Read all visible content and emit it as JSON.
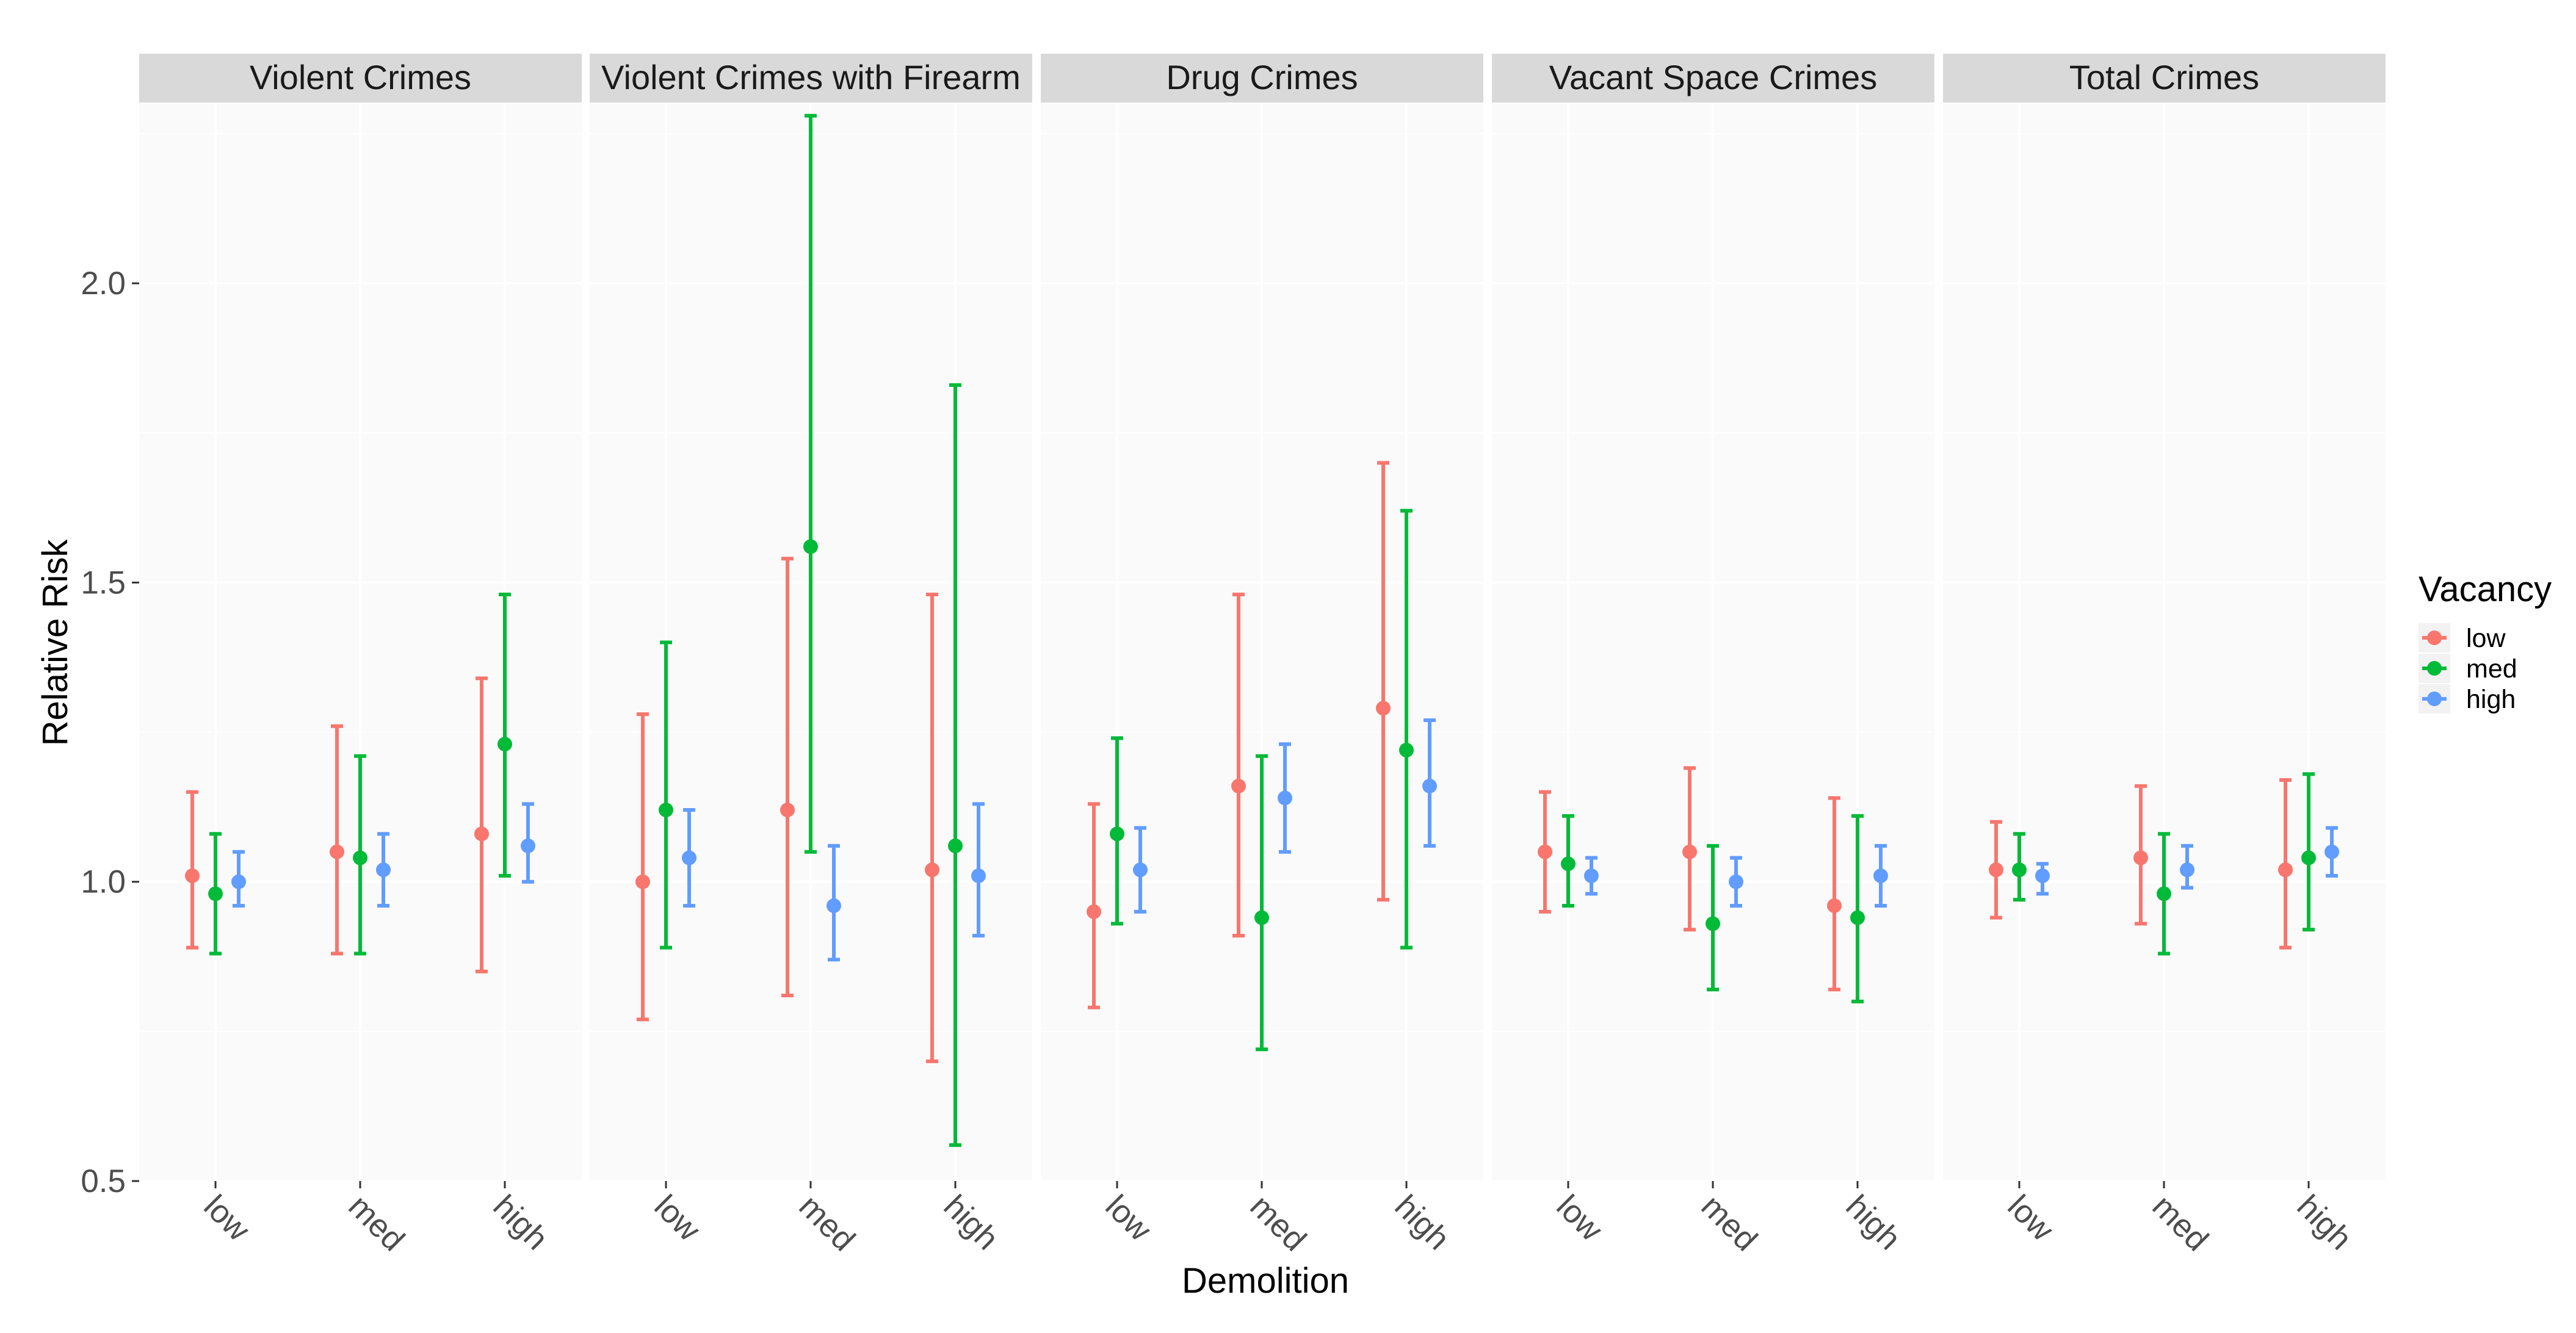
{
  "chart_data": {
    "type": "errorbar",
    "xlabel": "Demolition",
    "ylabel": "Relative Risk",
    "ylim": [
      0.5,
      2.3
    ],
    "yticks": [
      0.5,
      1.0,
      1.5,
      2.0
    ],
    "ytick_labels": [
      "0.5",
      "1.0",
      "1.5",
      "2.0"
    ],
    "categories": [
      "low",
      "med",
      "high"
    ],
    "legend": {
      "title": "Vacancy",
      "placement": "right",
      "entries": [
        {
          "name": "low",
          "color": "#F8766D"
        },
        {
          "name": "med",
          "color": "#00BA38"
        },
        {
          "name": "high",
          "color": "#619CFF"
        }
      ]
    },
    "colors": {
      "panel_bg": "#FAFAFA",
      "strip_bg": "#D9D9D9",
      "grid": "#FFFFFF"
    },
    "panels": [
      {
        "title": "Violent Crimes",
        "data": [
          [
            {
              "est": 1.01,
              "lo": 0.89,
              "hi": 1.15
            },
            {
              "est": 0.98,
              "lo": 0.88,
              "hi": 1.08
            },
            {
              "est": 1.0,
              "lo": 0.96,
              "hi": 1.05
            }
          ],
          [
            {
              "est": 1.05,
              "lo": 0.88,
              "hi": 1.26
            },
            {
              "est": 1.04,
              "lo": 0.88,
              "hi": 1.21
            },
            {
              "est": 1.02,
              "lo": 0.96,
              "hi": 1.08
            }
          ],
          [
            {
              "est": 1.08,
              "lo": 0.85,
              "hi": 1.34
            },
            {
              "est": 1.23,
              "lo": 1.01,
              "hi": 1.48
            },
            {
              "est": 1.06,
              "lo": 1.0,
              "hi": 1.13
            }
          ]
        ]
      },
      {
        "title": "Violent Crimes with Firearm",
        "data": [
          [
            {
              "est": 1.0,
              "lo": 0.77,
              "hi": 1.28
            },
            {
              "est": 1.12,
              "lo": 0.89,
              "hi": 1.4
            },
            {
              "est": 1.04,
              "lo": 0.96,
              "hi": 1.12
            }
          ],
          [
            {
              "est": 1.12,
              "lo": 0.81,
              "hi": 1.54
            },
            {
              "est": 1.56,
              "lo": 1.05,
              "hi": 2.28
            },
            {
              "est": 0.96,
              "lo": 0.87,
              "hi": 1.06
            }
          ],
          [
            {
              "est": 1.02,
              "lo": 0.7,
              "hi": 1.48
            },
            {
              "est": 1.06,
              "lo": 0.56,
              "hi": 1.83
            },
            {
              "est": 1.01,
              "lo": 0.91,
              "hi": 1.13
            }
          ]
        ]
      },
      {
        "title": "Drug Crimes",
        "data": [
          [
            {
              "est": 0.95,
              "lo": 0.79,
              "hi": 1.13
            },
            {
              "est": 1.08,
              "lo": 0.93,
              "hi": 1.24
            },
            {
              "est": 1.02,
              "lo": 0.95,
              "hi": 1.09
            }
          ],
          [
            {
              "est": 1.16,
              "lo": 0.91,
              "hi": 1.48
            },
            {
              "est": 0.94,
              "lo": 0.72,
              "hi": 1.21
            },
            {
              "est": 1.14,
              "lo": 1.05,
              "hi": 1.23
            }
          ],
          [
            {
              "est": 1.29,
              "lo": 0.97,
              "hi": 1.7
            },
            {
              "est": 1.22,
              "lo": 0.89,
              "hi": 1.62
            },
            {
              "est": 1.16,
              "lo": 1.06,
              "hi": 1.27
            }
          ]
        ]
      },
      {
        "title": "Vacant Space Crimes",
        "data": [
          [
            {
              "est": 1.05,
              "lo": 0.95,
              "hi": 1.15
            },
            {
              "est": 1.03,
              "lo": 0.96,
              "hi": 1.11
            },
            {
              "est": 1.01,
              "lo": 0.98,
              "hi": 1.04
            }
          ],
          [
            {
              "est": 1.05,
              "lo": 0.92,
              "hi": 1.19
            },
            {
              "est": 0.93,
              "lo": 0.82,
              "hi": 1.06
            },
            {
              "est": 1.0,
              "lo": 0.96,
              "hi": 1.04
            }
          ],
          [
            {
              "est": 0.96,
              "lo": 0.82,
              "hi": 1.14
            },
            {
              "est": 0.94,
              "lo": 0.8,
              "hi": 1.11
            },
            {
              "est": 1.01,
              "lo": 0.96,
              "hi": 1.06
            }
          ]
        ]
      },
      {
        "title": "Total Crimes",
        "data": [
          [
            {
              "est": 1.02,
              "lo": 0.94,
              "hi": 1.1
            },
            {
              "est": 1.02,
              "lo": 0.97,
              "hi": 1.08
            },
            {
              "est": 1.01,
              "lo": 0.98,
              "hi": 1.03
            }
          ],
          [
            {
              "est": 1.04,
              "lo": 0.93,
              "hi": 1.16
            },
            {
              "est": 0.98,
              "lo": 0.88,
              "hi": 1.08
            },
            {
              "est": 1.02,
              "lo": 0.99,
              "hi": 1.06
            }
          ],
          [
            {
              "est": 1.02,
              "lo": 0.89,
              "hi": 1.17
            },
            {
              "est": 1.04,
              "lo": 0.92,
              "hi": 1.18
            },
            {
              "est": 1.05,
              "lo": 1.01,
              "hi": 1.09
            }
          ]
        ]
      }
    ]
  }
}
